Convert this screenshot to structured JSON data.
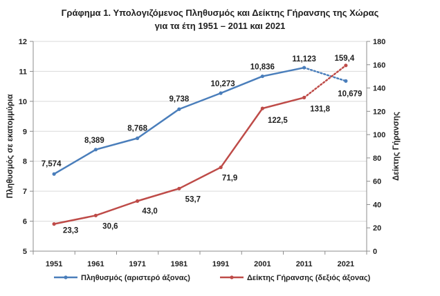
{
  "chart_data": {
    "type": "line",
    "title": [
      "Γράφημα 1. Υπολογιζόμενος Πληθυσμός και Δείκτης Γήρανσης της Χώρας",
      "για τα έτη 1951 – 2011 και 2021"
    ],
    "categories": [
      "1951",
      "1961",
      "1971",
      "1981",
      "1991",
      "2001",
      "2011",
      "2021"
    ],
    "ylabel_left": "Πληθυσμός σε εκατομμύρια",
    "ylabel_right": "Δείκτης Γήρανσης",
    "ylim_left": [
      5,
      12
    ],
    "yticks_left": [
      "5",
      "6",
      "7",
      "8",
      "9",
      "10",
      "11",
      "12"
    ],
    "ylim_right": [
      0,
      180
    ],
    "yticks_right": [
      "0",
      "20",
      "40",
      "60",
      "80",
      "100",
      "120",
      "140",
      "160",
      "180"
    ],
    "grid": true,
    "legend_position": "bottom",
    "series": [
      {
        "name": "Πληθυσμός (αριστερό άξονας)",
        "axis": "left",
        "color": "#4a7ebb",
        "values": [
          7.574,
          8.389,
          8.768,
          9.738,
          10.273,
          10.836,
          11.123,
          10.679
        ],
        "labels": [
          "7,574",
          "8,389",
          "8,768",
          "9,738",
          "10,273",
          "10,836",
          "11,123",
          "10,679"
        ],
        "last_segment": "dotted"
      },
      {
        "name": "Δείκτης Γήρανσης (δεξιός άξονας)",
        "axis": "right",
        "color": "#be4b48",
        "values": [
          23.3,
          30.6,
          43.0,
          53.7,
          71.9,
          122.5,
          131.8,
          159.4
        ],
        "labels": [
          "23,3",
          "30,6",
          "43,0",
          "53,7",
          "71,9",
          "122,5",
          "131,8",
          "159,4"
        ],
        "last_segment": "dotted"
      }
    ]
  }
}
